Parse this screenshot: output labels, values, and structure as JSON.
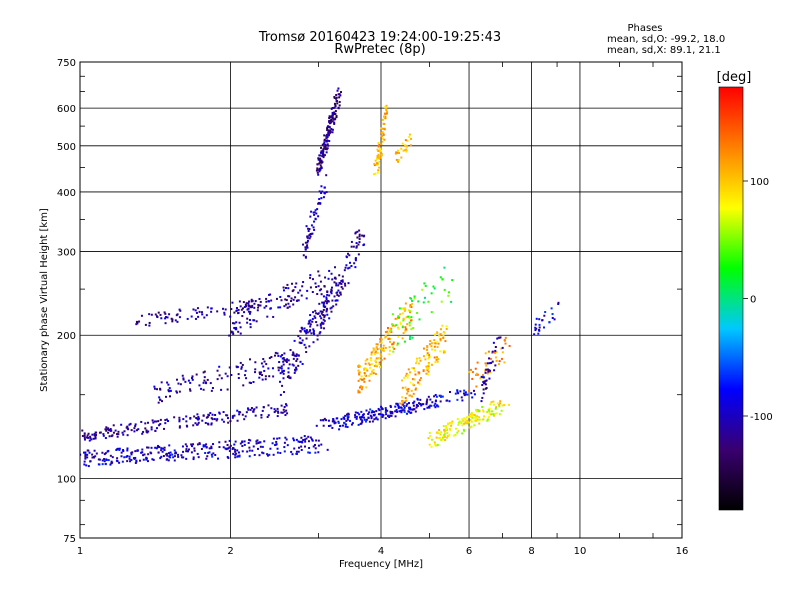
{
  "chart_data": {
    "type": "scatter",
    "title": "Tromsø 20160423 19:24:00-19:25:43",
    "subtitle": "RwPretec (8p)",
    "xlabel": "Frequency [MHz]",
    "ylabel": "Stationary phase Virtual Height [km]",
    "x_scale": "log",
    "y_scale": "log",
    "xlim": [
      1,
      16
    ],
    "ylim": [
      75,
      750
    ],
    "x_ticks": [
      1,
      2,
      4,
      6,
      8,
      10,
      16
    ],
    "y_ticks": [
      75,
      100,
      200,
      300,
      400,
      500,
      600,
      750
    ],
    "grid": true,
    "stats": {
      "heading": "Phases",
      "line_o": "mean, sd,O: -99.2, 18.0",
      "line_x": "mean, sd,X:  89.1, 21.1"
    },
    "colorbar": {
      "label": "[deg]",
      "range": [
        -180,
        180
      ],
      "ticks": [
        100,
        0,
        -100
      ],
      "colormap": [
        "#000000",
        "#3a0070",
        "#0000ff",
        "#00c8ff",
        "#00ff00",
        "#ffff00",
        "#ff8000",
        "#ff0000"
      ]
    },
    "traces": [
      {
        "name": "",
        "f": [
          1.0,
          2.6
        ],
        "h": [
          123,
          140
        ],
        "phase": -110,
        "count": 200,
        "spread": 0.03
      },
      {
        "name": "",
        "f": [
          1.0,
          3.0
        ],
        "h": [
          112,
          121
        ],
        "phase": -100,
        "count": 170,
        "spread": 0.02
      },
      {
        "name": "",
        "f": [
          1.0,
          3.2
        ],
        "h": [
          108,
          116
        ],
        "phase": -95,
        "count": 150,
        "spread": 0.02
      },
      {
        "name": "",
        "f": [
          1.4,
          2.6
        ],
        "h": [
          150,
          175
        ],
        "phase": -110,
        "count": 120,
        "spread": 0.06
      },
      {
        "name": "",
        "f": [
          2.5,
          3.2
        ],
        "h": [
          160,
          240
        ],
        "phase": -105,
        "count": 140,
        "spread": 0.08
      },
      {
        "name": "",
        "f": [
          2.0,
          3.3
        ],
        "h": [
          210,
          270
        ],
        "phase": -110,
        "count": 120,
        "spread": 0.06
      },
      {
        "name": "",
        "f": [
          1.3,
          2.3
        ],
        "h": [
          214,
          232
        ],
        "phase": -115,
        "count": 90,
        "spread": 0.03
      },
      {
        "name": "",
        "f": [
          3.0,
          3.3
        ],
        "h": [
          440,
          650
        ],
        "phase": -120,
        "count": 160,
        "spread": 0.04
      },
      {
        "name": "",
        "f": [
          2.8,
          3.1
        ],
        "h": [
          300,
          420
        ],
        "phase": -100,
        "count": 60,
        "spread": 0.05
      },
      {
        "name": "",
        "f": [
          3.0,
          3.7
        ],
        "h": [
          210,
          330
        ],
        "phase": -110,
        "count": 90,
        "spread": 0.08
      },
      {
        "name": "",
        "f": [
          3.0,
          5.2
        ],
        "h": [
          129,
          145
        ],
        "phase": -100,
        "count": 130,
        "spread": 0.03
      },
      {
        "name": "",
        "f": [
          3.2,
          6.2
        ],
        "h": [
          130,
          152
        ],
        "phase": -90,
        "count": 110,
        "spread": 0.03
      },
      {
        "name": "",
        "f": [
          3.6,
          4.6
        ],
        "h": [
          160,
          225
        ],
        "phase": 110,
        "count": 160,
        "spread": 0.07
      },
      {
        "name": "",
        "f": [
          4.4,
          5.4
        ],
        "h": [
          150,
          200
        ],
        "phase": 105,
        "count": 120,
        "spread": 0.07
      },
      {
        "name": "",
        "f": [
          3.9,
          4.1
        ],
        "h": [
          440,
          590
        ],
        "phase": 110,
        "count": 70,
        "spread": 0.04
      },
      {
        "name": "",
        "f": [
          4.3,
          4.6
        ],
        "h": [
          470,
          520
        ],
        "phase": 110,
        "count": 25,
        "spread": 0.03
      },
      {
        "name": "",
        "f": [
          5.0,
          7.2
        ],
        "h": [
          120,
          145
        ],
        "phase": 80,
        "count": 150,
        "spread": 0.04
      },
      {
        "name": "",
        "f": [
          4.2,
          5.5
        ],
        "h": [
          200,
          260
        ],
        "phase": 30,
        "count": 50,
        "spread": 0.1
      },
      {
        "name": "",
        "f": [
          6.0,
          7.2
        ],
        "h": [
          160,
          190
        ],
        "phase": 120,
        "count": 40,
        "spread": 0.06
      },
      {
        "name": "",
        "f": [
          6.3,
          7.0
        ],
        "h": [
          150,
          200
        ],
        "phase": -110,
        "count": 40,
        "spread": 0.06
      },
      {
        "name": "",
        "f": [
          8.0,
          9.0
        ],
        "h": [
          205,
          225
        ],
        "phase": -90,
        "count": 25,
        "spread": 0.04
      }
    ]
  }
}
